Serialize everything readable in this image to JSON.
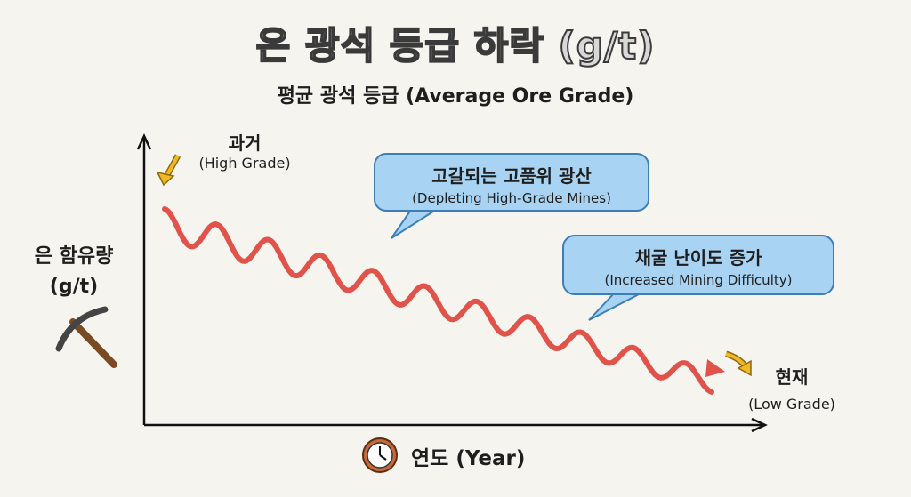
{
  "chart_data": {
    "type": "line",
    "title": "은 광석 등급 하락 (g/t)",
    "subtitle": "평균 광석 등급 (Average Ore Grade)",
    "xlabel": "연도 (Year)",
    "ylabel": "은 함유량 (g/t)",
    "grid": false,
    "trend": "decreasing, wavy",
    "series_color": "#e0524a",
    "annotations": {
      "start_ko": "과거",
      "start_en": "(High Grade)",
      "end_ko": "현재",
      "end_en": "(Low Grade)",
      "callout1_ko": "고갈되는 고품위 광산",
      "callout1_en": "(Depleting High-Grade Mines)",
      "callout2_ko": "채굴 난이도 증가",
      "callout2_en": "(Increased Mining Difficulty)"
    },
    "icons": {
      "y_axis": "pickaxe-icon",
      "x_axis": "clock-icon",
      "markers": "yellow-arrow-icon"
    }
  }
}
